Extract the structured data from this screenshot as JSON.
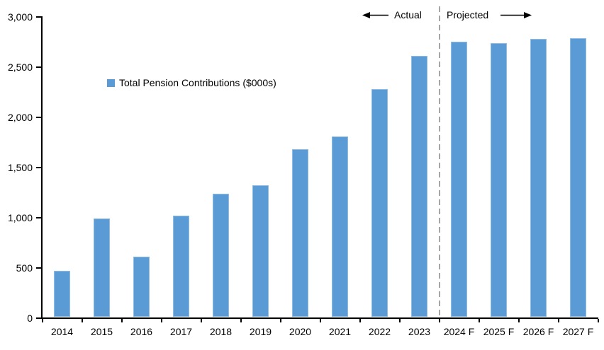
{
  "chart_data": {
    "type": "bar",
    "title": "",
    "legend": "Total Pension Contributions ($000s)",
    "categories": [
      "2014",
      "2015",
      "2016",
      "2017",
      "2018",
      "2019",
      "2020",
      "2021",
      "2022",
      "2023",
      "2024 F",
      "2025 F",
      "2026 F",
      "2027 F"
    ],
    "values": [
      470,
      990,
      610,
      1020,
      1240,
      1320,
      1680,
      1810,
      2280,
      2610,
      2750,
      2740,
      2780,
      2790
    ],
    "xlabel": "",
    "ylabel": "",
    "ylim": [
      0,
      3000
    ],
    "y_ticks": [
      0,
      500,
      1000,
      1500,
      2000,
      2500,
      3000
    ],
    "y_tick_labels": [
      "0",
      "500",
      "1,000",
      "1,500",
      "2,000",
      "2,500",
      "3,000"
    ],
    "grid": false,
    "legend_position": "inside-upper-left",
    "annotations": {
      "actual_label": "Actual",
      "projected_label": "Projected",
      "divider_between": [
        "2023",
        "2024 F"
      ]
    },
    "colors": {
      "bar": "#5B9BD5",
      "bar_edge": "#8FBCE4",
      "divider": "#A6A6A6",
      "axis": "#000000",
      "text": "#000000",
      "background": "#FFFFFF"
    }
  }
}
